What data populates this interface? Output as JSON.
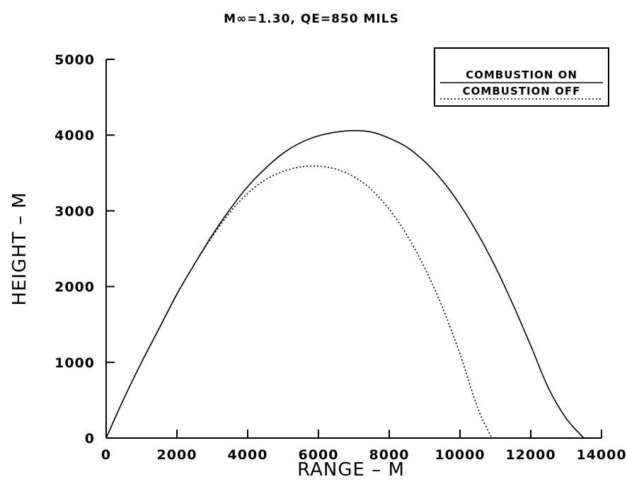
{
  "chart_data": {
    "type": "line",
    "title": "M∞=1.30, QE=850 MILS",
    "xlabel": "RANGE – M",
    "ylabel": "HEIGHT – M",
    "xlim": [
      0,
      14000
    ],
    "ylim": [
      0,
      5000
    ],
    "xticks": [
      0,
      2000,
      4000,
      6000,
      8000,
      10000,
      12000,
      14000
    ],
    "yticks": [
      0,
      1000,
      2000,
      3000,
      4000,
      5000
    ],
    "grid": false,
    "legend_position": "top-right",
    "series": [
      {
        "name": "COMBUSTION ON",
        "style": "solid",
        "x": [
          0,
          500,
          1000,
          1500,
          2000,
          2500,
          3000,
          3500,
          4000,
          4500,
          5000,
          5500,
          6000,
          6500,
          7000,
          7500,
          8000,
          8500,
          9000,
          9500,
          10000,
          10500,
          11000,
          11500,
          12000,
          12500,
          13000,
          13500
        ],
        "y": [
          0,
          520,
          1000,
          1450,
          1900,
          2300,
          2680,
          3020,
          3320,
          3560,
          3760,
          3900,
          3990,
          4040,
          4060,
          4040,
          3960,
          3840,
          3650,
          3400,
          3080,
          2700,
          2260,
          1760,
          1220,
          660,
          260,
          0
        ]
      },
      {
        "name": "COMBUSTION OFF",
        "style": "dotted",
        "x": [
          0,
          500,
          1000,
          1500,
          2000,
          2500,
          3000,
          3500,
          4000,
          4500,
          5000,
          5500,
          6000,
          6500,
          7000,
          7500,
          8000,
          8500,
          9000,
          9500,
          10000,
          10500,
          10900
        ],
        "y": [
          0,
          520,
          1000,
          1450,
          1900,
          2300,
          2660,
          2980,
          3230,
          3410,
          3520,
          3580,
          3590,
          3550,
          3450,
          3280,
          3020,
          2680,
          2250,
          1730,
          1110,
          400,
          0
        ]
      }
    ]
  }
}
